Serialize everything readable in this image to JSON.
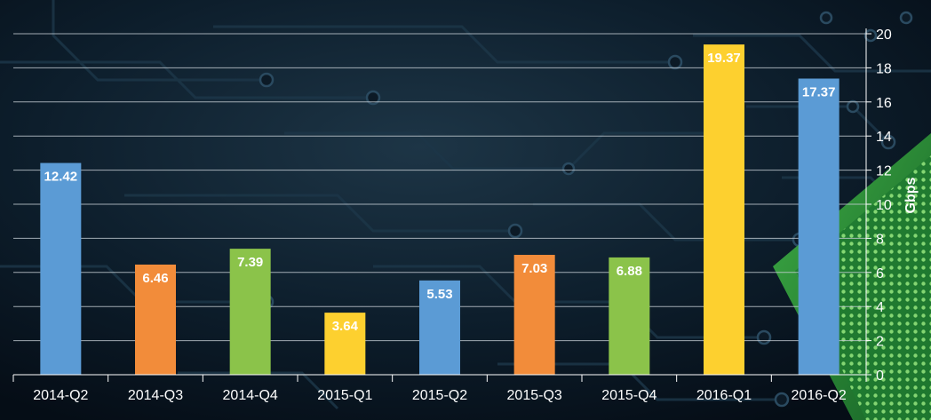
{
  "chart_data": {
    "type": "bar",
    "categories": [
      "2014-Q2",
      "2014-Q3",
      "2014-Q4",
      "2015-Q1",
      "2015-Q2",
      "2015-Q3",
      "2015-Q4",
      "2016-Q1",
      "2016-Q2"
    ],
    "values": [
      12.42,
      6.46,
      7.39,
      3.64,
      5.53,
      7.03,
      6.88,
      19.37,
      17.37
    ],
    "value_labels": [
      "12.42",
      "6.46",
      "7.39",
      "3.64",
      "5.53",
      "7.03",
      "6.88",
      "19.37",
      "17.37"
    ],
    "bar_colors": [
      "#5b9bd5",
      "#f28c3a",
      "#8bc34a",
      "#fdd02f",
      "#5b9bd5",
      "#f28c3a",
      "#8bc34a",
      "#fdd02f",
      "#5b9bd5"
    ],
    "title": "",
    "xlabel": "",
    "ylabel": "Gbps",
    "ylim": [
      0,
      20
    ],
    "yticks": [
      "0",
      "2",
      "4",
      "6",
      "8",
      "10",
      "12",
      "14",
      "16",
      "18",
      "20"
    ],
    "grid": true,
    "y_axis_side": "right",
    "legend": "none"
  },
  "colors": {
    "background": "#07131f",
    "circuit": "#1b3446",
    "chip": "#2a8a3a",
    "gridline": "#c7cfd6",
    "text": "#ffffff"
  }
}
